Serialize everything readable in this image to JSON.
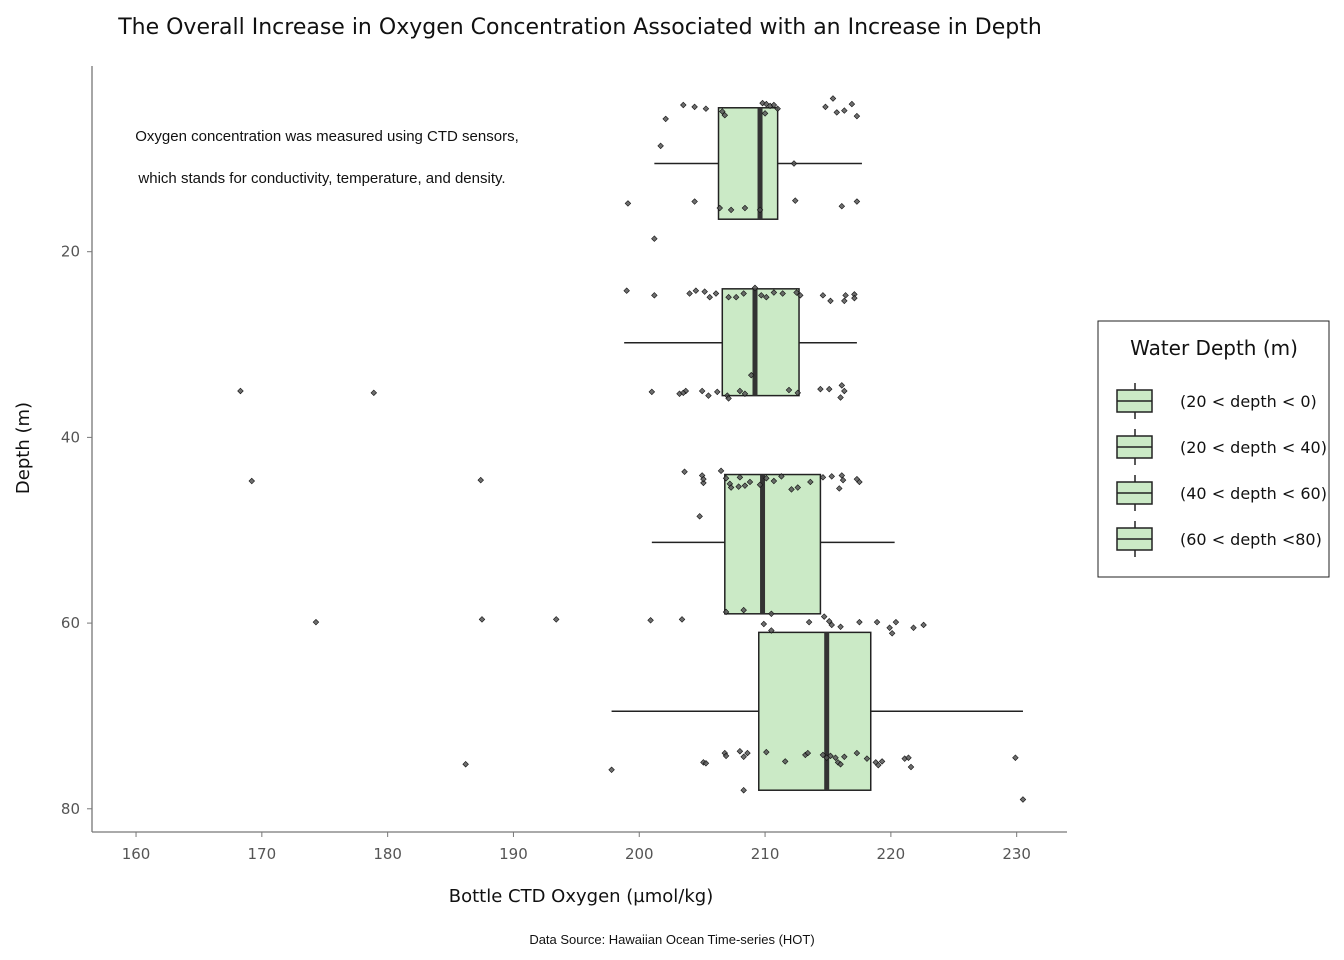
{
  "chart_data": {
    "type": "box",
    "title": "The Overall Increase in Oxygen Concentration Associated with an Increase in Depth",
    "annotation_lines": [
      "Oxygen concentration was measured using CTD sensors,",
      "which stands for conductivity, temperature, and density."
    ],
    "xlabel": "Bottle CTD Oxygen (µmol/kg)",
    "ylabel": "Depth (m)",
    "caption": "Data Source: Hawaiian Ocean Time-series (HOT)",
    "xlim": [
      156.5,
      234
    ],
    "ylim": [
      82.5,
      0
    ],
    "y_reversed": true,
    "xticks": [
      160,
      170,
      180,
      190,
      200,
      210,
      220,
      230
    ],
    "yticks": [
      20,
      40,
      60,
      80
    ],
    "grid": false,
    "box_fill": "#cbeac6",
    "box_stroke": "#222222",
    "point_color": "#555555",
    "legend": {
      "title": "Water Depth (m)",
      "position": "right",
      "entries": [
        "(20 < depth < 0)",
        "(20 < depth < 40)",
        "(40 < depth < 60)",
        "(60 < depth <80)"
      ]
    },
    "series": [
      {
        "name": "(20 < depth < 0)",
        "depth_center": 10.5,
        "box_top": 4.5,
        "box_bottom": 16.5,
        "whisker_low": 201.2,
        "q1": 206.3,
        "median": 209.6,
        "q3": 211.0,
        "whisker_high": 217.7,
        "points": [
          [
            203.5,
            4.2
          ],
          [
            204.4,
            4.4
          ],
          [
            205.3,
            4.6
          ],
          [
            202.1,
            5.7
          ],
          [
            206.6,
            4.9
          ],
          [
            206.8,
            5.3
          ],
          [
            209.8,
            4.0
          ],
          [
            210.1,
            4.1
          ],
          [
            210.4,
            4.3
          ],
          [
            210.7,
            4.2
          ],
          [
            211.0,
            4.6
          ],
          [
            210.0,
            5.1
          ],
          [
            215.4,
            3.5
          ],
          [
            214.8,
            4.4
          ],
          [
            215.7,
            5.0
          ],
          [
            216.3,
            4.8
          ],
          [
            217.3,
            5.4
          ],
          [
            216.9,
            4.1
          ],
          [
            201.7,
            8.6
          ],
          [
            212.3,
            10.5
          ],
          [
            199.1,
            14.8
          ],
          [
            204.4,
            14.6
          ],
          [
            206.4,
            15.3
          ],
          [
            207.3,
            15.5
          ],
          [
            208.4,
            15.3
          ],
          [
            209.6,
            15.5
          ],
          [
            212.4,
            14.5
          ],
          [
            216.1,
            15.1
          ],
          [
            217.3,
            14.6
          ],
          [
            201.2,
            18.6
          ]
        ]
      },
      {
        "name": "(20 < depth < 40)",
        "depth_center": 29.8,
        "box_top": 24.0,
        "box_bottom": 35.5,
        "whisker_low": 198.8,
        "q1": 206.6,
        "median": 209.2,
        "q3": 212.7,
        "whisker_high": 217.3,
        "points": [
          [
            199.0,
            24.2
          ],
          [
            201.2,
            24.7
          ],
          [
            204.5,
            24.2
          ],
          [
            204.0,
            24.5
          ],
          [
            205.2,
            24.3
          ],
          [
            205.6,
            24.9
          ],
          [
            206.1,
            24.5
          ],
          [
            207.1,
            24.9
          ],
          [
            207.7,
            24.9
          ],
          [
            208.3,
            24.5
          ],
          [
            209.2,
            23.9
          ],
          [
            209.7,
            24.7
          ],
          [
            210.1,
            24.9
          ],
          [
            210.7,
            24.4
          ],
          [
            211.4,
            24.5
          ],
          [
            212.5,
            24.4
          ],
          [
            212.8,
            24.7
          ],
          [
            214.6,
            24.7
          ],
          [
            215.2,
            25.3
          ],
          [
            216.4,
            24.7
          ],
          [
            217.1,
            24.6
          ],
          [
            217.1,
            25.0
          ],
          [
            216.3,
            25.3
          ],
          [
            201.0,
            35.1
          ],
          [
            203.7,
            35.0
          ],
          [
            203.2,
            35.3
          ],
          [
            203.5,
            35.2
          ],
          [
            205.0,
            35.0
          ],
          [
            205.5,
            35.5
          ],
          [
            206.2,
            35.1
          ],
          [
            207.0,
            35.5
          ],
          [
            207.1,
            35.8
          ],
          [
            208.0,
            35.0
          ],
          [
            208.4,
            35.3
          ],
          [
            208.9,
            33.3
          ],
          [
            211.9,
            34.9
          ],
          [
            212.6,
            35.2
          ],
          [
            214.4,
            34.8
          ],
          [
            215.1,
            34.8
          ],
          [
            216.0,
            35.7
          ],
          [
            216.3,
            35.0
          ],
          [
            216.1,
            34.4
          ],
          [
            168.3,
            35.0
          ],
          [
            178.9,
            35.2
          ]
        ]
      },
      {
        "name": "(40 < depth < 60)",
        "depth_center": 51.3,
        "box_top": 44.0,
        "box_bottom": 59.0,
        "whisker_low": 201.0,
        "q1": 206.8,
        "median": 209.8,
        "q3": 214.4,
        "whisker_high": 220.3,
        "points": [
          [
            203.6,
            43.7
          ],
          [
            205.0,
            44.1
          ],
          [
            205.1,
            44.9
          ],
          [
            205.1,
            44.5
          ],
          [
            206.5,
            43.6
          ],
          [
            206.9,
            44.4
          ],
          [
            207.2,
            45.0
          ],
          [
            207.3,
            45.4
          ],
          [
            207.9,
            45.3
          ],
          [
            208.4,
            45.2
          ],
          [
            208.8,
            44.8
          ],
          [
            208.0,
            44.3
          ],
          [
            209.6,
            45.1
          ],
          [
            210.1,
            44.4
          ],
          [
            210.7,
            44.7
          ],
          [
            211.3,
            44.2
          ],
          [
            212.1,
            45.6
          ],
          [
            212.6,
            45.4
          ],
          [
            213.6,
            44.8
          ],
          [
            214.6,
            44.3
          ],
          [
            215.9,
            45.5
          ],
          [
            216.1,
            44.1
          ],
          [
            216.2,
            44.6
          ],
          [
            217.5,
            44.8
          ],
          [
            217.3,
            44.5
          ],
          [
            215.3,
            44.2
          ],
          [
            204.8,
            48.5
          ],
          [
            169.2,
            44.7
          ],
          [
            187.4,
            44.6
          ],
          [
            206.9,
            58.8
          ],
          [
            208.3,
            58.6
          ],
          [
            210.5,
            59.0
          ]
        ]
      },
      {
        "name": "(60 < depth <80)",
        "depth_center": 69.5,
        "box_top": 61.0,
        "box_bottom": 78.0,
        "whisker_low": 197.8,
        "q1": 209.5,
        "median": 214.9,
        "q3": 218.4,
        "whisker_high": 230.5,
        "points": [
          [
            174.3,
            59.9
          ],
          [
            187.5,
            59.6
          ],
          [
            193.4,
            59.6
          ],
          [
            200.9,
            59.7
          ],
          [
            203.4,
            59.6
          ],
          [
            209.9,
            60.1
          ],
          [
            210.5,
            60.8
          ],
          [
            213.5,
            59.9
          ],
          [
            214.7,
            59.3
          ],
          [
            215.1,
            59.8
          ],
          [
            215.3,
            60.2
          ],
          [
            216.0,
            60.4
          ],
          [
            217.5,
            59.9
          ],
          [
            218.9,
            59.9
          ],
          [
            219.9,
            60.5
          ],
          [
            220.1,
            61.1
          ],
          [
            220.4,
            59.9
          ],
          [
            221.8,
            60.5
          ],
          [
            222.6,
            60.2
          ],
          [
            186.2,
            75.2
          ],
          [
            197.8,
            75.8
          ],
          [
            205.1,
            75.0
          ],
          [
            205.3,
            75.1
          ],
          [
            206.8,
            74.0
          ],
          [
            206.9,
            74.3
          ],
          [
            208.0,
            73.8
          ],
          [
            208.3,
            74.4
          ],
          [
            208.6,
            74.0
          ],
          [
            210.1,
            73.9
          ],
          [
            211.6,
            74.9
          ],
          [
            213.2,
            74.2
          ],
          [
            213.4,
            74.0
          ],
          [
            214.6,
            74.2
          ],
          [
            214.9,
            74.5
          ],
          [
            215.2,
            74.3
          ],
          [
            215.6,
            74.5
          ],
          [
            215.8,
            75.0
          ],
          [
            216.0,
            75.2
          ],
          [
            216.3,
            74.4
          ],
          [
            217.3,
            74.0
          ],
          [
            218.1,
            74.6
          ],
          [
            218.8,
            75.0
          ],
          [
            219.0,
            75.3
          ],
          [
            219.3,
            74.9
          ],
          [
            221.1,
            74.6
          ],
          [
            221.4,
            74.5
          ],
          [
            221.6,
            75.5
          ],
          [
            229.9,
            74.5
          ],
          [
            230.5,
            79.0
          ],
          [
            208.3,
            78.0
          ]
        ]
      }
    ]
  }
}
